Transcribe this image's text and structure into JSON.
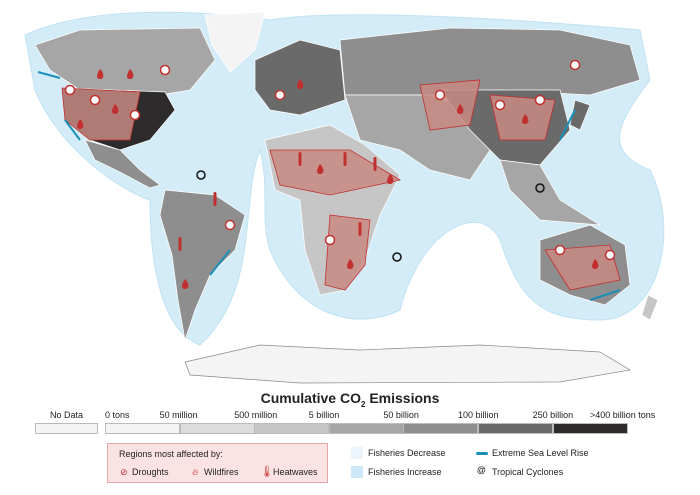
{
  "map": {
    "type": "choropleth world map",
    "regions": [
      "North America",
      "South America",
      "Europe",
      "Africa",
      "Asia",
      "Australia",
      "Antarctica"
    ]
  },
  "legend": {
    "title_main": "Cumulative CO",
    "title_sub": "2",
    "title_end": " Emissions",
    "no_data": "No Data",
    "scale": [
      {
        "label": "0 tons",
        "color": "#f4f4f4"
      },
      {
        "label": "50 million",
        "color": "#dcdcdc"
      },
      {
        "label": "500 million",
        "color": "#c6c6c6"
      },
      {
        "label": "5 billion",
        "color": "#a6a6a6"
      },
      {
        "label": "50 billion",
        "color": "#8e8e8e"
      },
      {
        "label": "100 billion",
        "color": "#6a6a6a"
      },
      {
        "label": "250 billion",
        "color": "#2d2b2b"
      }
    ],
    "scale_end": ">400 billion tons",
    "regions_title": "Regions most affected by:",
    "droughts": "Droughts",
    "wildfires": "Wildfires",
    "heatwaves": "Heatwaves",
    "fisheries_decrease": "Fisheries Decrease",
    "fisheries_increase": "Fisheries Increase",
    "sea_level": "Extreme Sea Level Rise",
    "cyclones": "Tropical Cyclones"
  },
  "colors": {
    "impact": "#c0302e",
    "impact_fill": "#c98a82",
    "fish_dec": "#eaf6fc",
    "fish_inc": "#cde9f7",
    "sea": "#1c8fb8"
  }
}
